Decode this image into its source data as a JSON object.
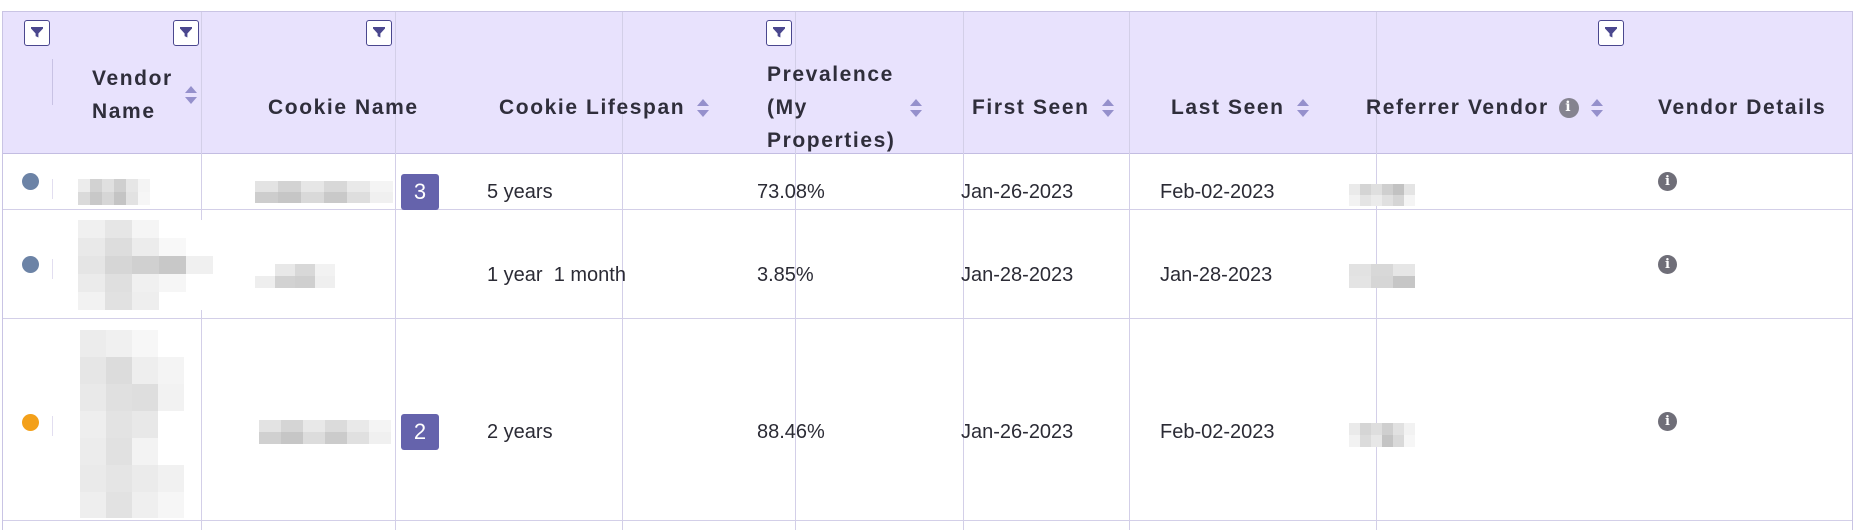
{
  "columns": {
    "vendor_name": "Vendor\nName",
    "cookie_name": "Cookie Name",
    "cookie_lifespan": "Cookie Lifespan",
    "prevalence_line1": "Prevalence",
    "prevalence_line2": "(My",
    "prevalence_line3": "Properties)",
    "first_seen": "First Seen",
    "last_seen": "Last Seen",
    "referrer_vendor": "Referrer Vendor",
    "vendor_details": "Vendor Details"
  },
  "icons": {
    "filter": "filter-icon",
    "sort": "sort-icon",
    "info": "info-icon"
  },
  "rows": [
    {
      "status_color": "#6c83a6",
      "cookie_count": "3",
      "lifespan": "5 years",
      "prevalence": "73.08%",
      "first_seen": "Jan-26-2023",
      "last_seen": "Feb-02-2023"
    },
    {
      "status_color": "#6c83a6",
      "cookie_count": "",
      "lifespan": "1 year  1 month",
      "prevalence": "3.85%",
      "first_seen": "Jan-28-2023",
      "last_seen": "Jan-28-2023"
    },
    {
      "status_color": "#f3a01a",
      "cookie_count": "2",
      "lifespan": "2 years",
      "prevalence": "88.46%",
      "first_seen": "Jan-26-2023",
      "last_seen": "Feb-02-2023"
    }
  ],
  "colors": {
    "header_bg": "#e8e2fd",
    "accent": "#6563ac",
    "border": "#d3cfe8"
  }
}
